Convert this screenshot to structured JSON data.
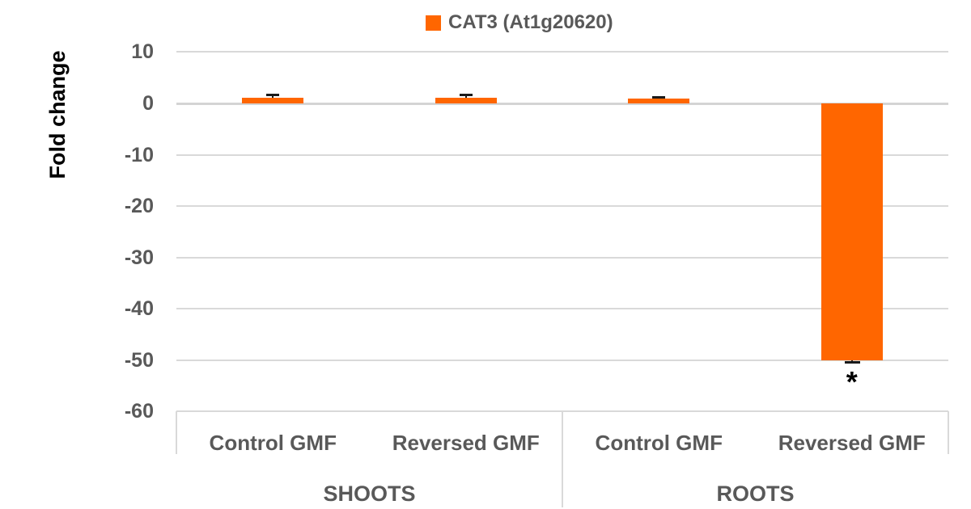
{
  "legend": {
    "label": "CAT3 (At1g20620)"
  },
  "axes": {
    "y_title": "Fold change"
  },
  "colors": {
    "bar": "#FF6600",
    "gridline": "#D9D9D9",
    "tick_text": "#595959",
    "axis_title_text": "#000000",
    "error_bar": "#1a1a1a"
  },
  "chart_data": {
    "type": "bar",
    "title": "",
    "legend_entries": [
      "CAT3 (At1g20620)"
    ],
    "legend_position": "top",
    "xlabel": "",
    "ylabel": "Fold change",
    "ylim": [
      -60,
      10
    ],
    "yticks": [
      10,
      0,
      -10,
      -20,
      -30,
      -40,
      -50,
      -60
    ],
    "grid": true,
    "groups": [
      {
        "label": "SHOOTS",
        "categories": [
          "Control GMF",
          "Reversed GMF"
        ]
      },
      {
        "label": "ROOTS",
        "categories": [
          "Control GMF",
          "Reversed GMF"
        ]
      }
    ],
    "categories": [
      "Control GMF",
      "Reversed GMF",
      "Control GMF",
      "Reversed GMF"
    ],
    "series": [
      {
        "name": "CAT3 (At1g20620)",
        "color": "#FF6600",
        "values": [
          1.1,
          1.1,
          1.0,
          -50
        ],
        "error_bars": [
          0.6,
          0.6,
          0.3,
          0.5
        ],
        "significance": [
          "",
          "",
          "",
          "*"
        ]
      }
    ]
  }
}
